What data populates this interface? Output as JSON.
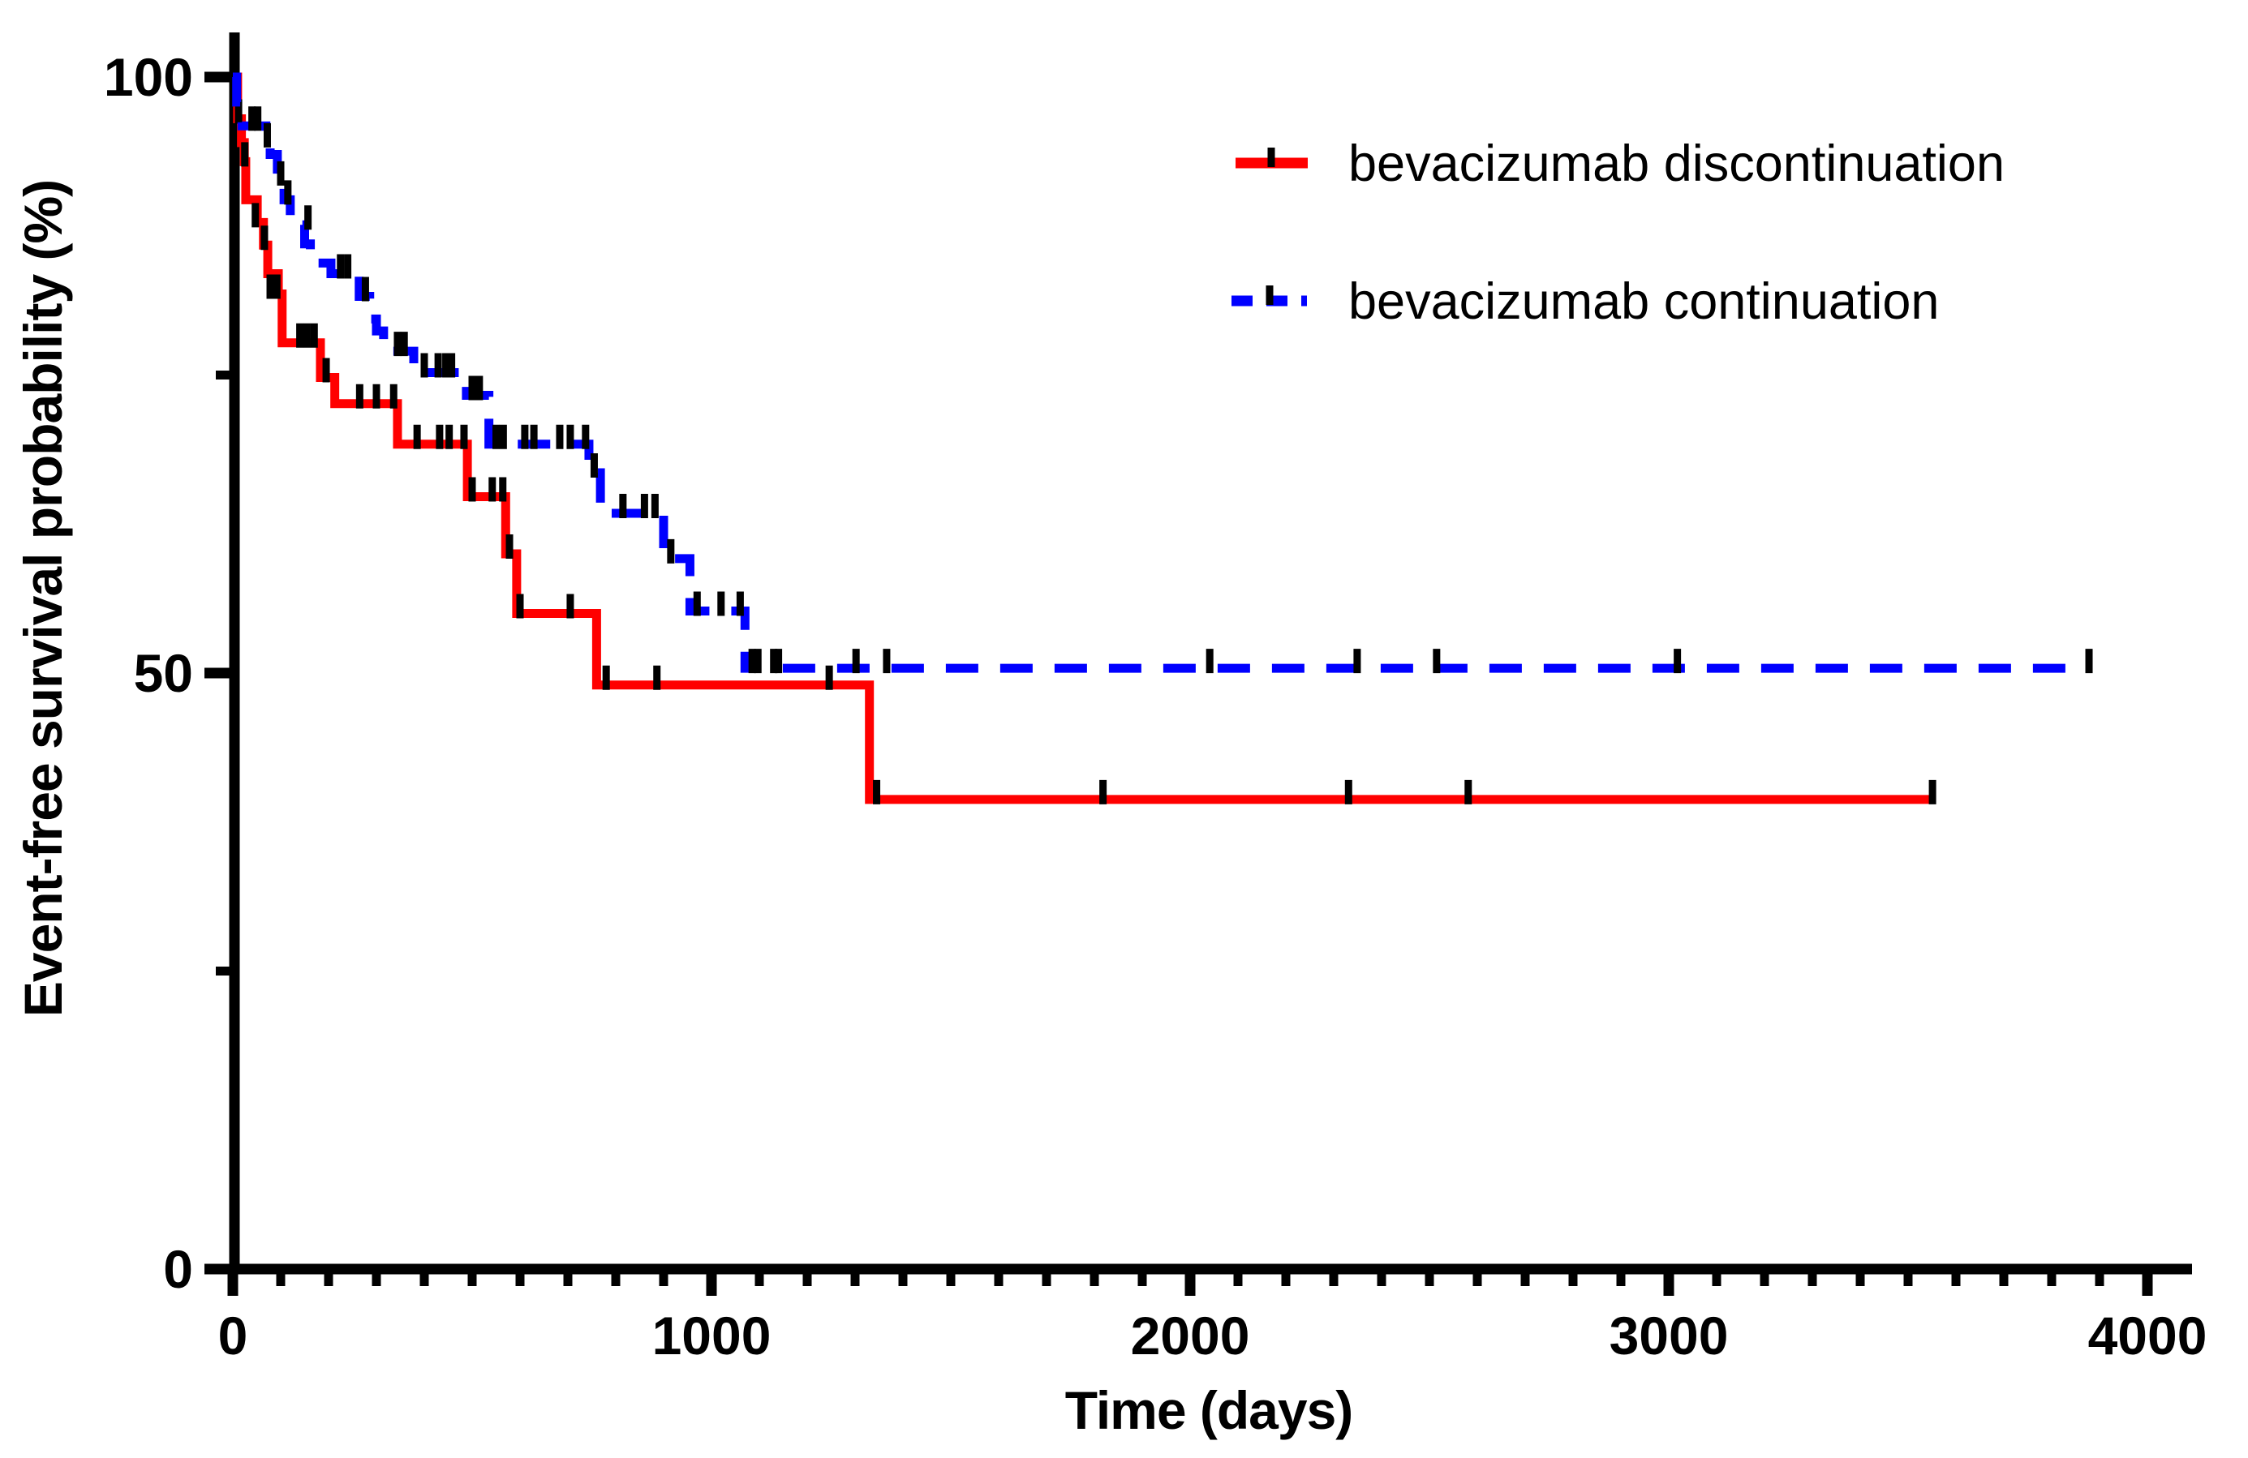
{
  "figure_title": "",
  "chart_data": {
    "type": "line",
    "subtype": "kaplan-meier-step",
    "title": "",
    "xlabel": "Time (days)",
    "ylabel": "Event-free survival probability (%)",
    "xlim": [
      0,
      4000
    ],
    "ylim": [
      0,
      100
    ],
    "grid": false,
    "legend_position": "top-right-inside",
    "x_ticks_major": [
      0,
      1000,
      2000,
      3000,
      4000
    ],
    "x_tick_labels": [
      "0",
      "1000",
      "2000",
      "3000",
      "4000"
    ],
    "x_minor_tick_step_days": 100,
    "y_ticks_major": [
      0,
      50,
      100
    ],
    "y_tick_labels": [
      "0",
      "50",
      "100"
    ],
    "y_ticks_minor": [
      25,
      75
    ],
    "axis_color": "#000000",
    "background_color": "#ffffff",
    "series": [
      {
        "name": "bevacizumab discontinuation",
        "color": "#ff0000",
        "style": "solid",
        "censor_mark_color": "#000000",
        "end_time": 3551,
        "steps": [
          [
            0,
            100
          ],
          [
            10,
            96.5
          ],
          [
            18,
            94.5
          ],
          [
            24,
            92.9
          ],
          [
            27,
            89.7
          ],
          [
            51,
            87.8
          ],
          [
            64,
            85.9
          ],
          [
            73,
            83.5
          ],
          [
            95,
            81.8
          ],
          [
            103,
            77.7
          ],
          [
            183,
            74.8
          ],
          [
            213,
            72.6
          ],
          [
            344,
            69.2
          ],
          [
            490,
            64.8
          ],
          [
            570,
            60.0
          ],
          [
            593,
            55.0
          ],
          [
            760,
            49.0
          ],
          [
            1330,
            39.4
          ]
        ],
        "censor_marks": [
          [
            12,
            96.5
          ],
          [
            25,
            92.9
          ],
          [
            47,
            87.8
          ],
          [
            66,
            85.9
          ],
          [
            78,
            81.8
          ],
          [
            92,
            81.8
          ],
          [
            140,
            77.7
          ],
          [
            155,
            77.7
          ],
          [
            170,
            77.7
          ],
          [
            195,
            74.8
          ],
          [
            265,
            72.6
          ],
          [
            300,
            72.6
          ],
          [
            336,
            72.6
          ],
          [
            385,
            69.2
          ],
          [
            432,
            69.2
          ],
          [
            452,
            69.2
          ],
          [
            483,
            69.2
          ],
          [
            500,
            64.8
          ],
          [
            542,
            64.8
          ],
          [
            564,
            64.8
          ],
          [
            578,
            60.0
          ],
          [
            600,
            55.0
          ],
          [
            705,
            55.0
          ],
          [
            780,
            49.0
          ],
          [
            886,
            49.0
          ],
          [
            1246,
            49.0
          ],
          [
            1345,
            39.4
          ],
          [
            1818,
            39.4
          ],
          [
            2331,
            39.4
          ],
          [
            2581,
            39.4
          ],
          [
            3551,
            39.4
          ]
        ]
      },
      {
        "name": "bevacizumab continuation",
        "color": "#0000ff",
        "style": "dashed",
        "censor_mark_color": "#000000",
        "end_time": 3878,
        "steps": [
          [
            0,
            100
          ],
          [
            8,
            97.9
          ],
          [
            19,
            95.9
          ],
          [
            69,
            94.5
          ],
          [
            78,
            93.5
          ],
          [
            93,
            91.3
          ],
          [
            107,
            89.7
          ],
          [
            120,
            88.3
          ],
          [
            136,
            87.6
          ],
          [
            150,
            86.0
          ],
          [
            162,
            84.4
          ],
          [
            205,
            83.5
          ],
          [
            264,
            81.6
          ],
          [
            286,
            79.7
          ],
          [
            300,
            78.7
          ],
          [
            315,
            77.0
          ],
          [
            378,
            75.2
          ],
          [
            488,
            73.3
          ],
          [
            535,
            69.2
          ],
          [
            744,
            66.8
          ],
          [
            768,
            63.4
          ],
          [
            900,
            59.6
          ],
          [
            955,
            55.2
          ],
          [
            1070,
            50.4
          ]
        ],
        "censor_marks": [
          [
            40,
            95.9
          ],
          [
            52,
            95.9
          ],
          [
            72,
            94.5
          ],
          [
            100,
            91.3
          ],
          [
            115,
            89.7
          ],
          [
            157,
            87.6
          ],
          [
            225,
            83.5
          ],
          [
            240,
            83.5
          ],
          [
            277,
            81.6
          ],
          [
            344,
            77.0
          ],
          [
            358,
            77.0
          ],
          [
            400,
            75.2
          ],
          [
            429,
            75.2
          ],
          [
            445,
            75.2
          ],
          [
            457,
            75.2
          ],
          [
            500,
            73.3
          ],
          [
            515,
            73.3
          ],
          [
            550,
            69.2
          ],
          [
            565,
            69.2
          ],
          [
            610,
            69.2
          ],
          [
            629,
            69.2
          ],
          [
            683,
            69.2
          ],
          [
            705,
            69.2
          ],
          [
            737,
            69.2
          ],
          [
            755,
            66.8
          ],
          [
            815,
            63.4
          ],
          [
            860,
            63.4
          ],
          [
            882,
            63.4
          ],
          [
            915,
            59.6
          ],
          [
            970,
            55.2
          ],
          [
            1020,
            55.2
          ],
          [
            1060,
            55.2
          ],
          [
            1085,
            50.4
          ],
          [
            1097,
            50.4
          ],
          [
            1130,
            50.4
          ],
          [
            1140,
            50.4
          ],
          [
            1302,
            50.4
          ],
          [
            1366,
            50.4
          ],
          [
            2041,
            50.4
          ],
          [
            2349,
            50.4
          ],
          [
            2515,
            50.4
          ],
          [
            3018,
            50.4
          ],
          [
            3878,
            50.4
          ]
        ]
      }
    ]
  }
}
